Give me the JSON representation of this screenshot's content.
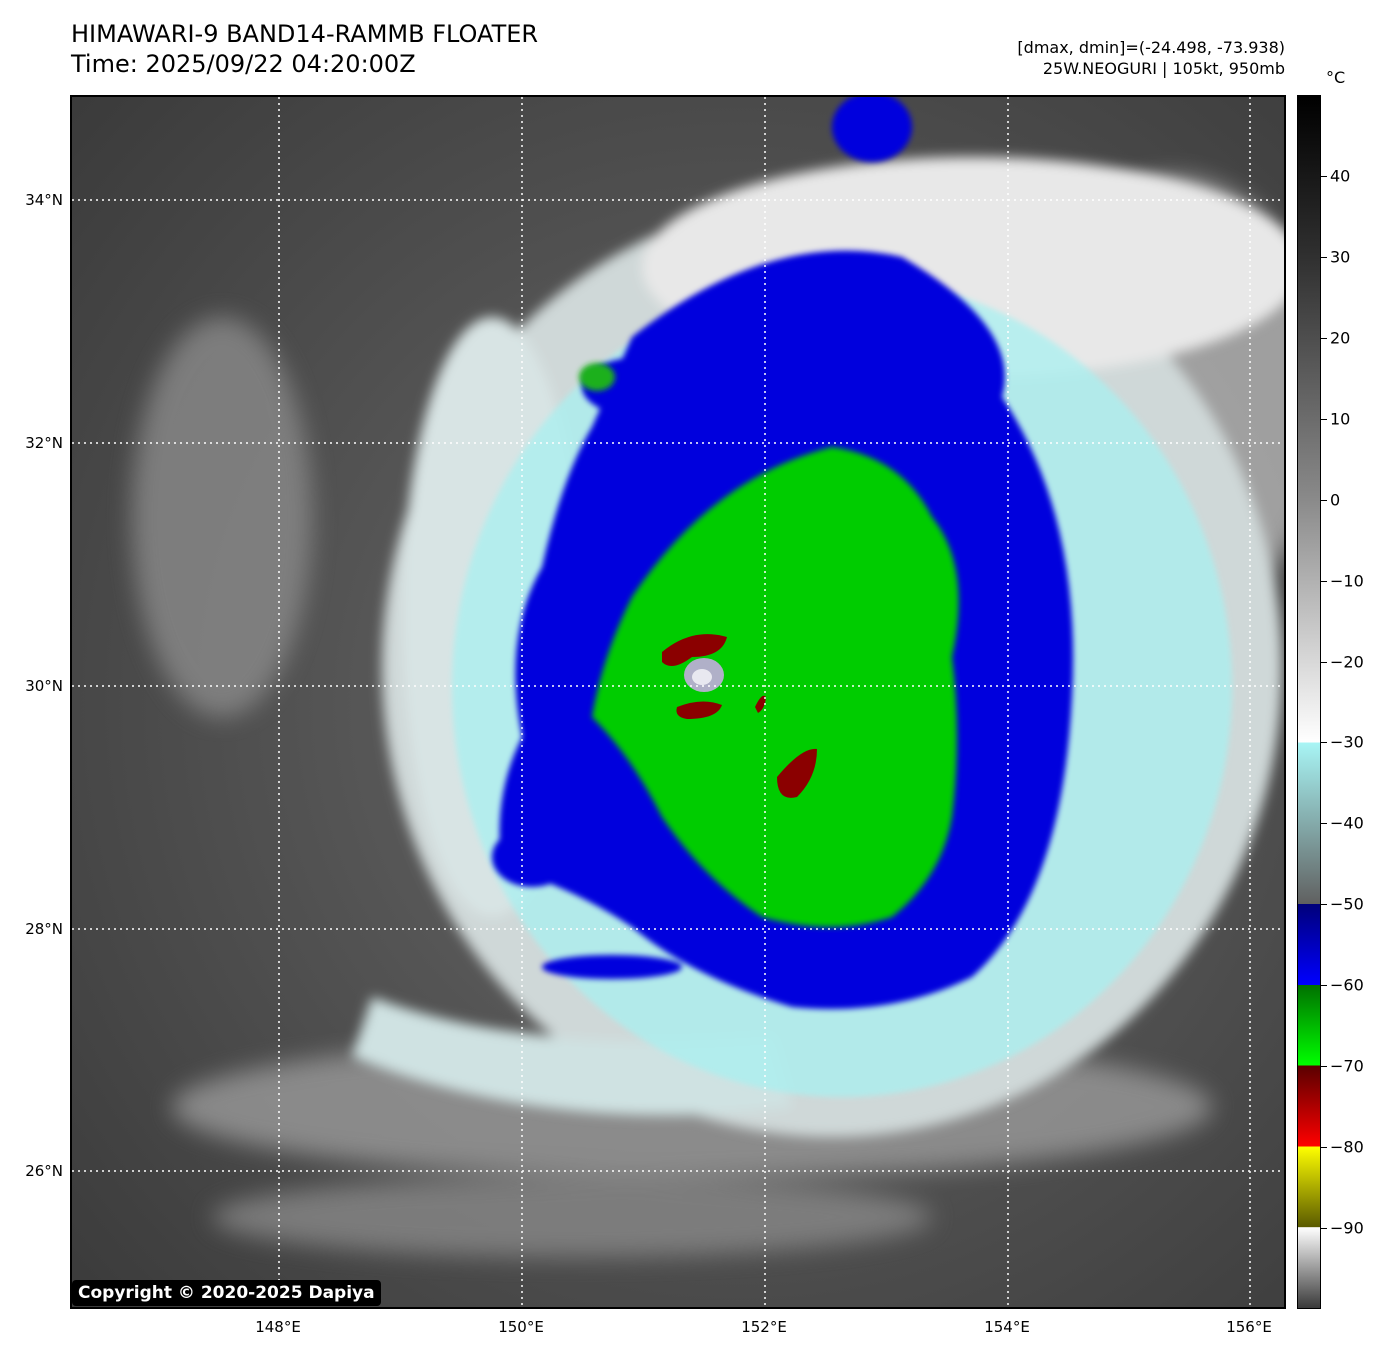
{
  "header": {
    "title_line1": "HIMAWARI-9 BAND14-RAMMB FLOATER",
    "title_line2": "Time: 2025/09/22 04:20:00Z",
    "info_line1": "[dmax, dmin]=(-24.498, -73.938)",
    "info_line2": "25W.NEOGURI | 105kt, 950mb"
  },
  "map": {
    "lat_labels": [
      "34°N",
      "32°N",
      "30°N",
      "28°N",
      "26°N"
    ],
    "lon_labels": [
      "148°E",
      "150°E",
      "152°E",
      "154°E",
      "156°E"
    ],
    "copyright": "Copyright © 2020-2025 Dapiya",
    "storm_center": {
      "lat": 30.0,
      "lon": 151.5
    },
    "colors": {
      "cold_red": "#8b0000",
      "green": "#00cc00",
      "blue": "#0000dd",
      "cyan": "#a8f0f0",
      "background_gray": "#4a4a4a"
    }
  },
  "colorbar": {
    "unit": "°C",
    "tick_labels": [
      "40",
      "30",
      "20",
      "10",
      "0",
      "−10",
      "−20",
      "−30",
      "−40",
      "−50",
      "−60",
      "−70",
      "−80",
      "−90"
    ],
    "range": [
      -100,
      50
    ]
  }
}
